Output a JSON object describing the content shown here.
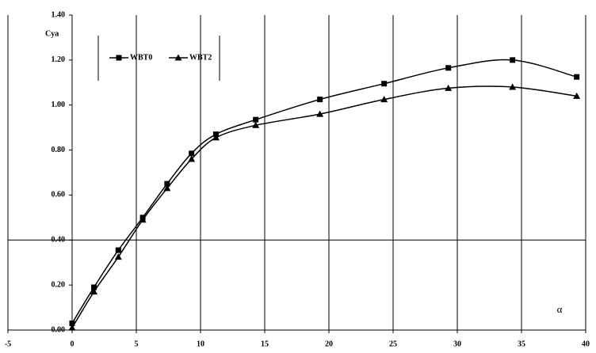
{
  "chart_data": {
    "type": "line",
    "y_label": "Cya",
    "annotation": "α",
    "series": [
      {
        "name": "WBT0",
        "color": "#000000",
        "marker": "square",
        "x": [
          0,
          1.7,
          3.6,
          5.5,
          7.4,
          9.3,
          11.2,
          14.3,
          19.3,
          24.3,
          29.3,
          34.3,
          39.3
        ],
        "values": [
          0.03,
          0.19,
          0.355,
          0.5,
          0.65,
          0.785,
          0.87,
          0.935,
          1.025,
          1.095,
          1.165,
          1.2,
          1.125
        ]
      },
      {
        "name": "WBT2",
        "color": "#000000",
        "marker": "triangle",
        "x": [
          0,
          1.7,
          3.6,
          5.5,
          7.4,
          9.3,
          11.2,
          14.3,
          19.3,
          24.3,
          29.3,
          34.3,
          39.3
        ],
        "values": [
          0.01,
          0.17,
          0.325,
          0.49,
          0.63,
          0.76,
          0.855,
          0.91,
          0.96,
          1.025,
          1.075,
          1.08,
          1.04
        ]
      }
    ],
    "xlim": [
      -5,
      40
    ],
    "ylim": [
      0,
      1.4
    ],
    "xticks": [
      -5,
      0,
      5,
      10,
      15,
      20,
      25,
      30,
      35,
      40
    ],
    "yticks": [
      {
        "value": 0,
        "label": "0.00"
      },
      {
        "value": 0.2,
        "label": "0.20"
      },
      {
        "value": 0.4,
        "label": "0.40"
      },
      {
        "value": 0.6,
        "label": "0.60"
      },
      {
        "value": 0.8,
        "label": "0.80"
      },
      {
        "value": 1.0,
        "label": "1.00"
      },
      {
        "value": 1.2,
        "label": "1.20"
      },
      {
        "value": 1.4,
        "label": "1.40"
      }
    ],
    "x_grid": true,
    "hline": 0.4,
    "legend": "top-left"
  }
}
